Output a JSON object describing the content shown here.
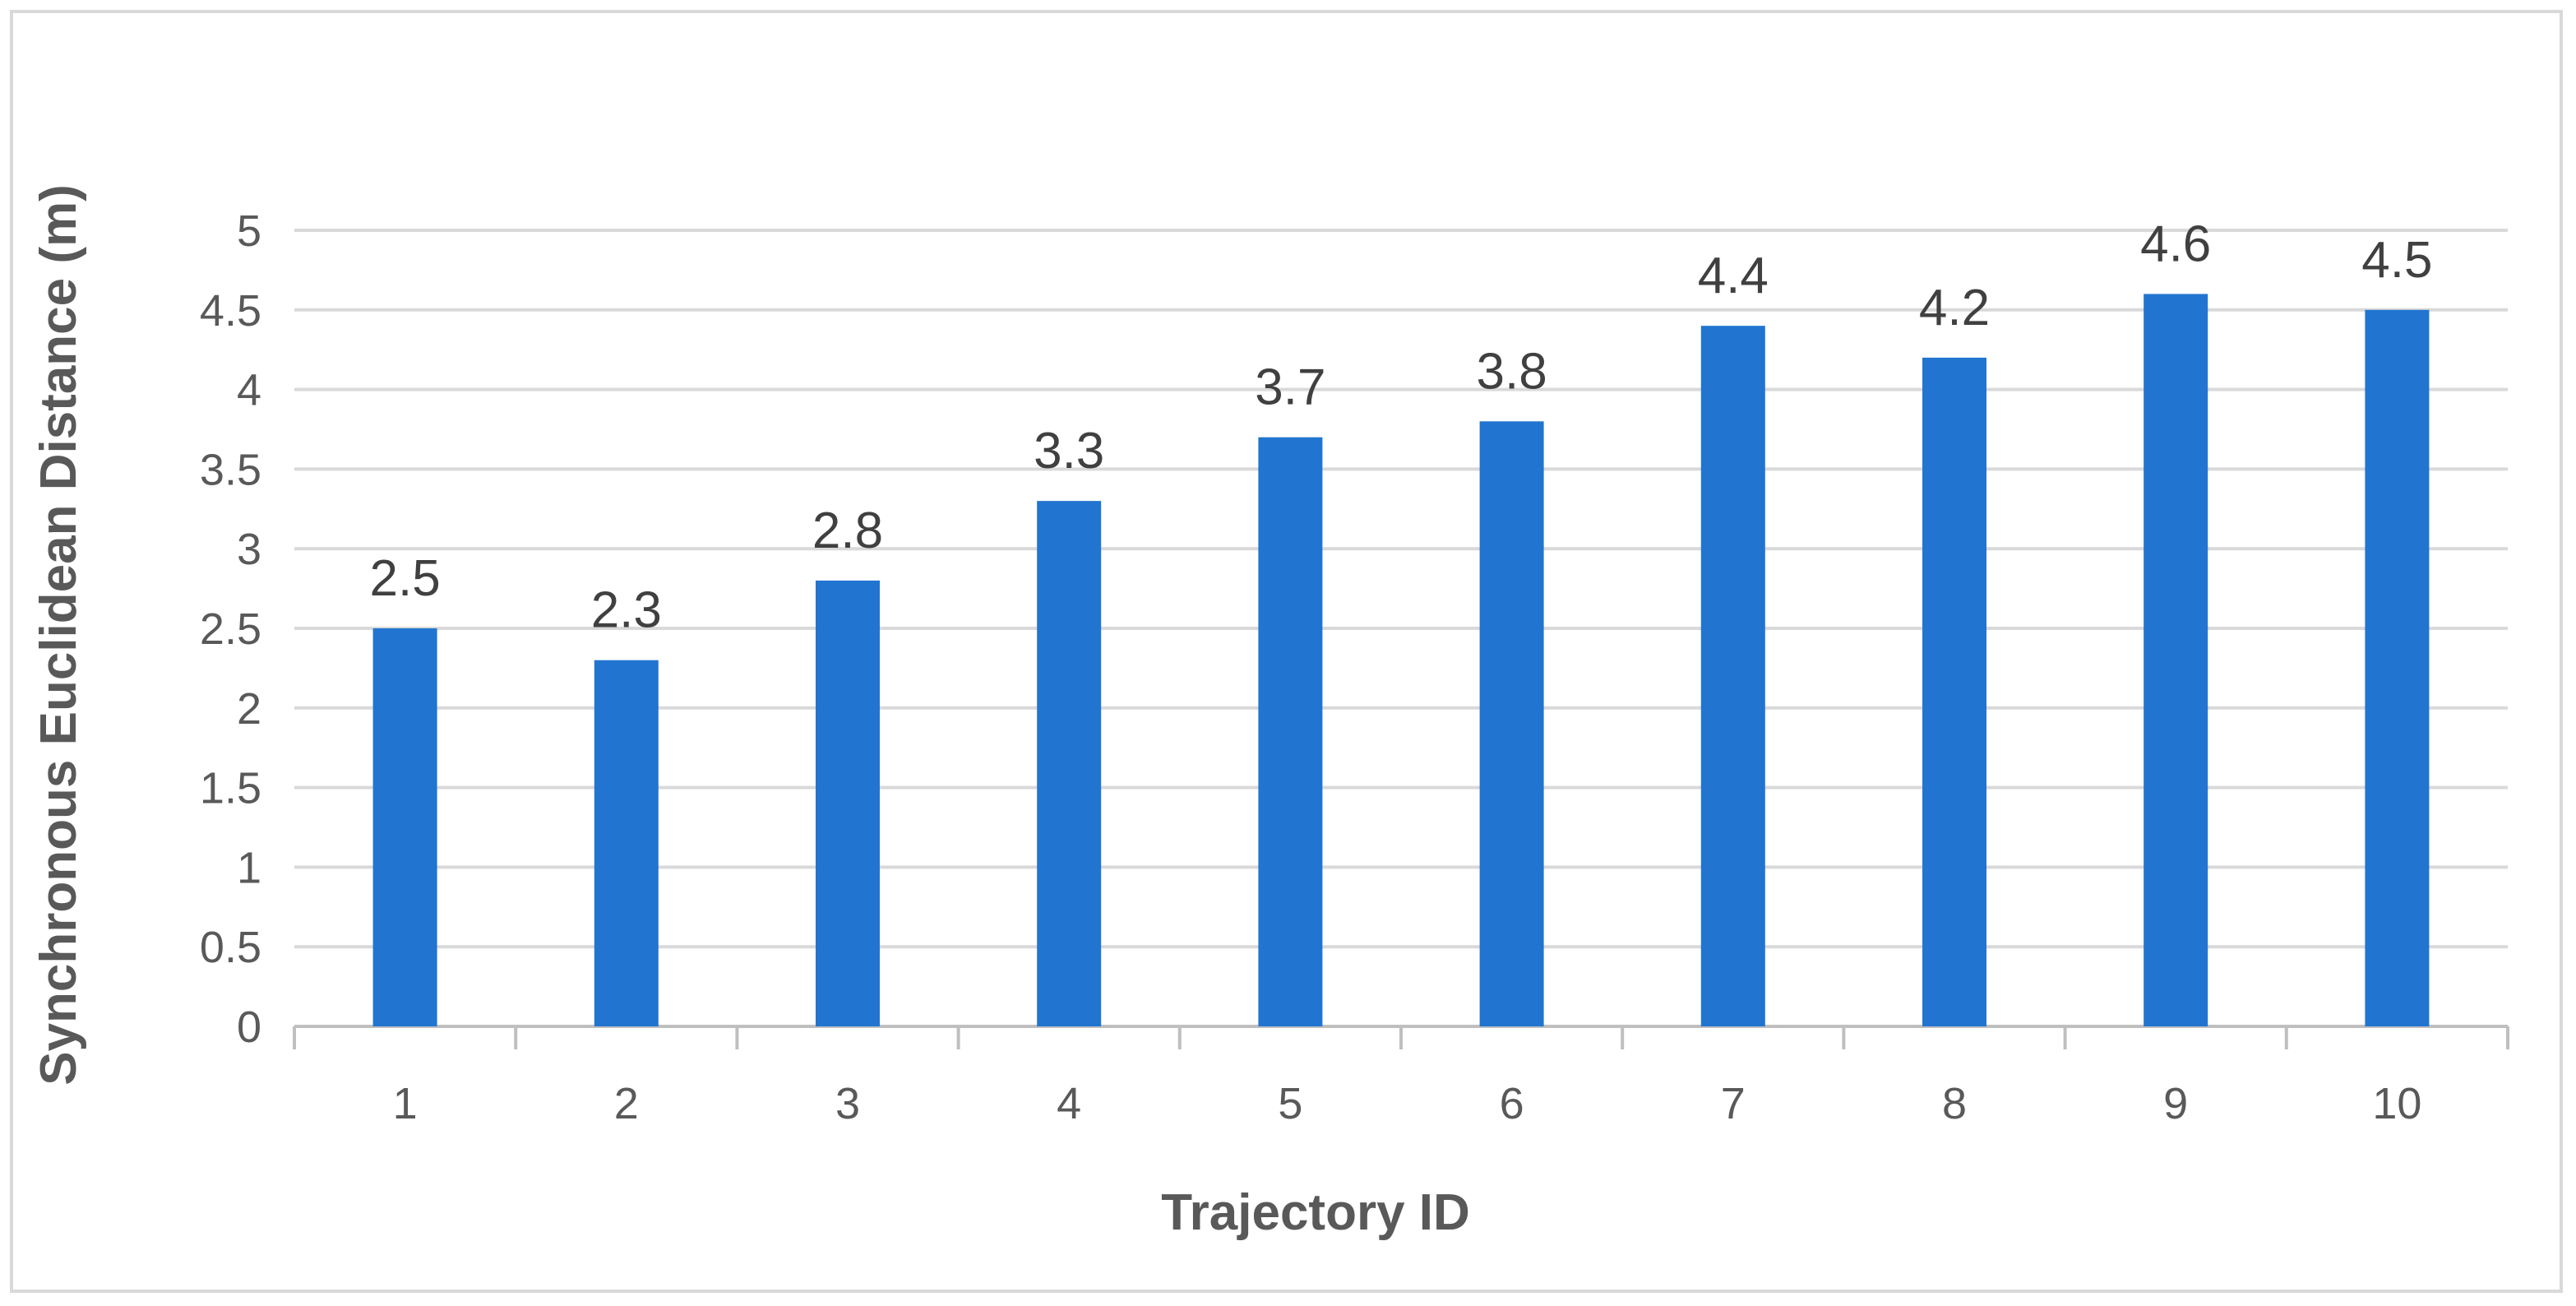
{
  "chart_data": {
    "type": "bar",
    "categories": [
      "1",
      "2",
      "3",
      "4",
      "5",
      "6",
      "7",
      "8",
      "9",
      "10"
    ],
    "values": [
      2.5,
      2.3,
      2.8,
      3.3,
      3.7,
      3.8,
      4.4,
      4.2,
      4.6,
      4.5
    ],
    "data_labels": [
      "2.5",
      "2.3",
      "2.8",
      "3.3",
      "3.7",
      "3.8",
      "4.4",
      "4.2",
      "4.6",
      "4.5"
    ],
    "y_ticks": [
      "0",
      "0.5",
      "1",
      "1.5",
      "2",
      "2.5",
      "3",
      "3.5",
      "4",
      "4.5",
      "5"
    ],
    "xlabel": "Trajectory ID",
    "ylabel": "Synchronous Euclidean Distance (m)",
    "ylim": [
      0,
      5
    ],
    "grid": true,
    "legend": "none",
    "bar_color": "#2175d0",
    "gridline_color": "#d9d9d9",
    "axis_color": "#bfbfbf"
  }
}
